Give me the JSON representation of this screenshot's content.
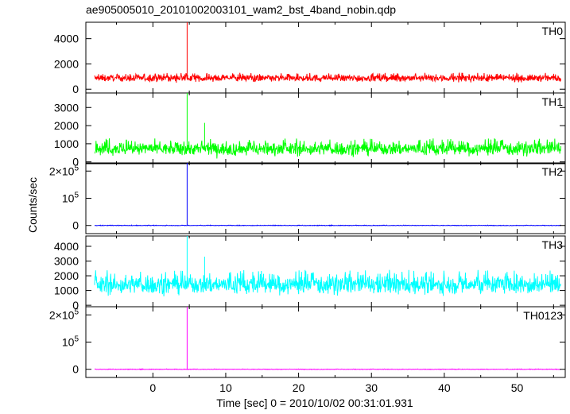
{
  "chart_data": {
    "type": "line",
    "title": "ae905005010_20101002003101_wam2_bst_4band_nobin.qdp",
    "xlabel": "Time [sec] 0 = 2010/10/02 00:31:01.931",
    "ylabel": "Counts/sec",
    "xlim": [
      -9.2,
      56.6
    ],
    "x_ticks": [
      {
        "value": 0,
        "label": "0"
      },
      {
        "value": 10,
        "label": "10"
      },
      {
        "value": 20,
        "label": "20"
      },
      {
        "value": 30,
        "label": "30"
      },
      {
        "value": 40,
        "label": "40"
      },
      {
        "value": 50,
        "label": "50"
      }
    ],
    "x_data_range": [
      -8.0,
      56.0
    ],
    "panels": [
      {
        "name": "TH0",
        "color": "#ff0000",
        "ylim": [
          -300,
          5300
        ],
        "y_ticks": [
          {
            "value": 0,
            "label": "0"
          },
          {
            "value": 2000,
            "label": "2000"
          },
          {
            "value": 4000,
            "label": "4000"
          }
        ],
        "baseline": 800,
        "noise_low": 450,
        "noise_high": 1300,
        "features": [
          {
            "x": 4.7,
            "y": 5300
          }
        ]
      },
      {
        "name": "TH1",
        "color": "#00ff00",
        "ylim": [
          -100,
          3800
        ],
        "y_ticks": [
          {
            "value": 0,
            "label": "0"
          },
          {
            "value": 1000,
            "label": "1000"
          },
          {
            "value": 2000,
            "label": "2000"
          },
          {
            "value": 3000,
            "label": "3000"
          }
        ],
        "baseline": 700,
        "noise_low": 150,
        "noise_high": 1300,
        "features": [
          {
            "x": 4.7,
            "y": 3800
          },
          {
            "x": 7.1,
            "y": 2150
          }
        ]
      },
      {
        "name": "TH2",
        "color": "#0000ff",
        "ylim": [
          -30000,
          230000
        ],
        "y_ticks": [
          {
            "value": 0,
            "label": "0"
          },
          {
            "value": 100000,
            "label": "10^5"
          },
          {
            "value": 200000,
            "label": "2×10^5"
          }
        ],
        "baseline": 0,
        "noise_low": -1500,
        "noise_high": 1500,
        "features": [
          {
            "x": 4.7,
            "y": 230000
          }
        ]
      },
      {
        "name": "TH3",
        "color": "#00ffff",
        "ylim": [
          -100,
          4700
        ],
        "y_ticks": [
          {
            "value": 0,
            "label": "0"
          },
          {
            "value": 1000,
            "label": "1000"
          },
          {
            "value": 2000,
            "label": "2000"
          },
          {
            "value": 3000,
            "label": "3000"
          },
          {
            "value": 4000,
            "label": "4000"
          }
        ],
        "baseline": 1300,
        "noise_low": 400,
        "noise_high": 2400,
        "features": [
          {
            "x": 4.7,
            "y": 4700
          },
          {
            "x": 7.1,
            "y": 3300
          }
        ]
      },
      {
        "name": "TH0123",
        "color": "#ff00ff",
        "ylim": [
          -30000,
          230000
        ],
        "y_ticks": [
          {
            "value": 0,
            "label": "0"
          },
          {
            "value": 100000,
            "label": "10^5"
          },
          {
            "value": 200000,
            "label": "2×10^5"
          }
        ],
        "baseline": 0,
        "noise_low": -1500,
        "noise_high": 1500,
        "features": [
          {
            "x": 4.7,
            "y": 230000
          }
        ]
      }
    ]
  }
}
